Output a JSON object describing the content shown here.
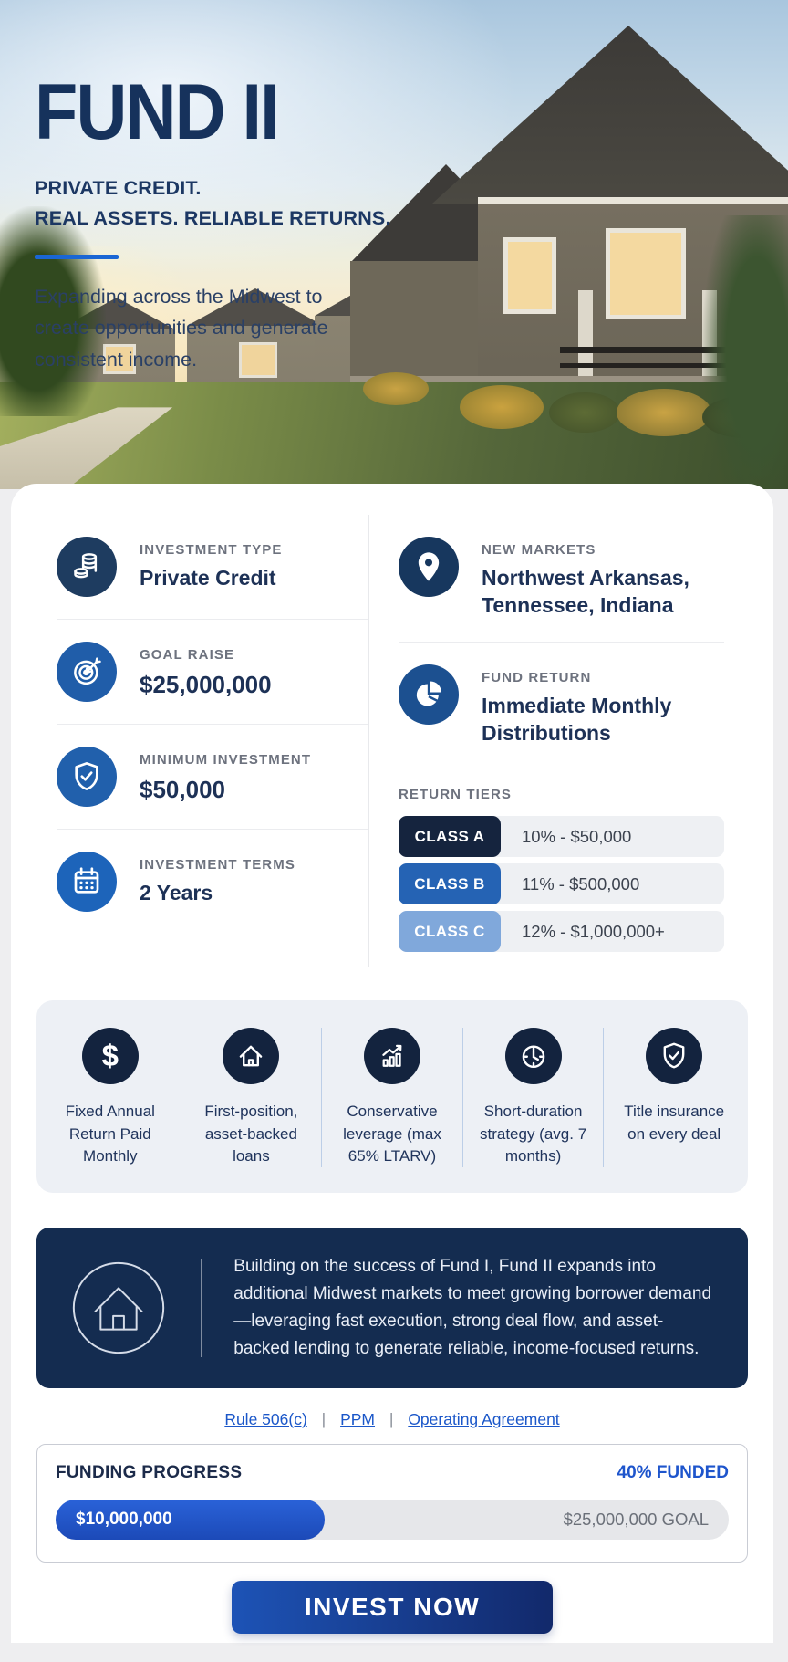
{
  "hero": {
    "title": "FUND II",
    "subtitle_line1": "PRIVATE CREDIT.",
    "subtitle_line2": "REAL ASSETS. RELIABLE RETURNS.",
    "description": "Expanding across the Midwest to create opportunities and generate consistent income."
  },
  "info_grid": {
    "left": [
      {
        "icon": "coins-icon",
        "label": "INVESTMENT TYPE",
        "value": "Private Credit"
      },
      {
        "icon": "target-icon",
        "label": "GOAL RAISE",
        "value": "$25,000,000"
      },
      {
        "icon": "shield-check-icon",
        "label": "MINIMUM INVESTMENT",
        "value": "$50,000"
      },
      {
        "icon": "calendar-icon",
        "label": "INVESTMENT TERMS",
        "value": "2 Years"
      }
    ],
    "right": [
      {
        "icon": "location-pin-icon",
        "label": "NEW MARKETS",
        "value": "Northwest Arkansas, Tennessee, Indiana"
      },
      {
        "icon": "pie-chart-icon",
        "label": "FUND RETURN",
        "value": "Immediate Monthly Distributions"
      }
    ],
    "return_tiers": {
      "label": "RETURN TIERS",
      "tiers": [
        {
          "name": "CLASS A",
          "value": "10% - $50,000",
          "color": "#15243e"
        },
        {
          "name": "CLASS B",
          "value": "11% - $500,000",
          "color": "#2563b4"
        },
        {
          "name": "CLASS C",
          "value": "12% - $1,000,000+",
          "color": "#80a8db"
        }
      ]
    }
  },
  "features": [
    {
      "icon": "dollar-icon",
      "text": "Fixed Annual Return Paid Monthly"
    },
    {
      "icon": "house-icon",
      "text": "First-position, asset-backed loans"
    },
    {
      "icon": "chart-up-icon",
      "text": "Conservative leverage (max 65% LTARV)"
    },
    {
      "icon": "clock-icon",
      "text": "Short-duration strategy (avg. 7 months)"
    },
    {
      "icon": "shield-check-icon",
      "text": "Title insurance on every deal"
    }
  ],
  "about": {
    "icon": "house-circle-icon",
    "text": "Building on the success of Fund I, Fund II expands into additional Midwest markets to meet growing borrower demand—leveraging fast execution, strong deal flow, and asset-backed lending to generate reliable, income-focused returns."
  },
  "documents": {
    "separator": "|",
    "links": [
      "Rule 506(c)",
      "PPM",
      "Operating Agreement"
    ]
  },
  "funding": {
    "label": "FUNDING PROGRESS",
    "funded_label": "40% FUNDED",
    "percent": 40,
    "raised": "$10,000,000",
    "goal": "$25,000,000 GOAL"
  },
  "cta": {
    "label": "INVEST NOW"
  },
  "colors": {
    "navy_dark": "#15243e",
    "navy_box": "#142c50",
    "accent_blue": "#1a66d4",
    "link_blue": "#1b57c9",
    "progress_blue": "#1e4fc2",
    "class_a": "#15243e",
    "class_b": "#2563b4",
    "class_c": "#80a8db"
  }
}
